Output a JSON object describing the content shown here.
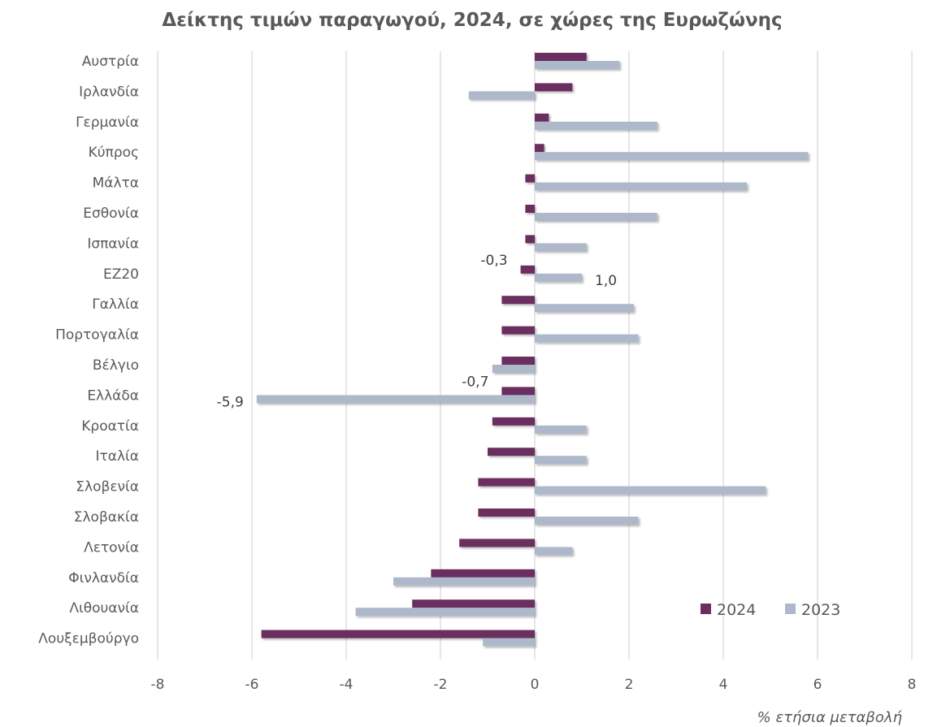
{
  "chart_data": {
    "type": "bar",
    "orientation": "horizontal",
    "title": "Δείκτης τιμών παραγωγού, 2024, σε χώρες της Ευρωζώνης",
    "xlabel": "% ετήσια μεταβολή",
    "ylabel": "",
    "xlim": [
      -8,
      8
    ],
    "x_ticks": [
      "-8",
      "-6",
      "-4",
      "-2",
      "0",
      "2",
      "4",
      "6",
      "8"
    ],
    "grid": "vertical",
    "legend_position": "bottom-right",
    "categories": [
      "Αυστρία",
      "Ιρλανδία",
      "Γερμανία",
      "Κύπρος",
      "Μάλτα",
      "Εσθονία",
      "Ισπανία",
      "ΕΖ20",
      "Γαλλία",
      "Πορτογαλία",
      "Βέλγιο",
      "Ελλάδα",
      "Κροατία",
      "Ιταλία",
      "Σλοβενία",
      "Σλοβακία",
      "Λετονία",
      "Φινλανδία",
      "Λιθουανία",
      "Λουξεμβούργο"
    ],
    "series": [
      {
        "name": "2024",
        "color": "#6b2e5f",
        "values": [
          1.1,
          0.8,
          0.3,
          0.2,
          -0.2,
          -0.2,
          -0.2,
          -0.3,
          -0.7,
          -0.7,
          -0.7,
          -0.7,
          -0.9,
          -1.0,
          -1.2,
          -1.2,
          -1.6,
          -2.2,
          -2.6,
          -5.8
        ]
      },
      {
        "name": "2023",
        "color": "#adb9ca",
        "values": [
          1.8,
          -1.4,
          2.6,
          5.8,
          4.5,
          2.6,
          1.1,
          1.0,
          2.1,
          2.2,
          -0.9,
          -5.9,
          1.1,
          1.1,
          4.9,
          2.2,
          0.8,
          -3.0,
          -3.8,
          -1.1
        ]
      }
    ],
    "data_labels": [
      {
        "category": "ΕΖ20",
        "series": "2024",
        "text": "-0,3"
      },
      {
        "category": "ΕΖ20",
        "series": "2023",
        "text": "1,0"
      },
      {
        "category": "Ελλάδα",
        "series": "2024",
        "text": "-0,7"
      },
      {
        "category": "Ελλάδα",
        "series": "2023",
        "text": "-5,9"
      }
    ]
  }
}
